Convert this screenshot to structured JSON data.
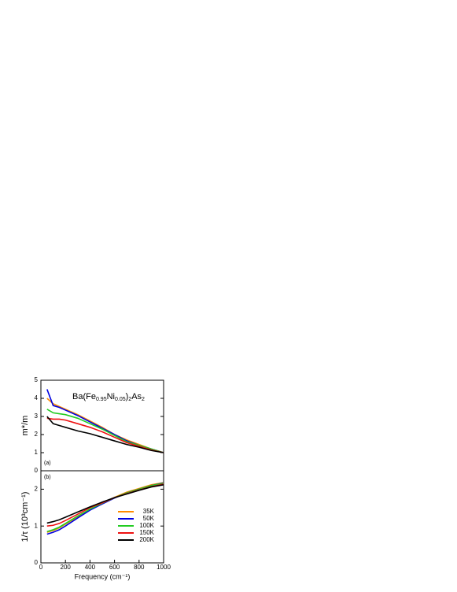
{
  "chart_data": [
    {
      "type": "line",
      "panel_label": "(a)",
      "ylabel": "m*/m",
      "annotation": [
        {
          "text": "Ba(Fe"
        },
        {
          "text": "0.95",
          "sub": true
        },
        {
          "text": "Ni"
        },
        {
          "text": "0.05",
          "sub": true
        },
        {
          "text": ")"
        },
        {
          "text": "2",
          "sub": true
        },
        {
          "text": "As"
        },
        {
          "text": "2",
          "sub": true
        }
      ],
      "x": [
        50,
        100,
        150,
        200,
        300,
        400,
        500,
        600,
        700,
        800,
        900,
        1000
      ],
      "xlim": [
        0,
        1000
      ],
      "ylim": [
        0,
        5
      ],
      "yticks": [
        0,
        1,
        2,
        3,
        4,
        5
      ],
      "series": [
        {
          "name": "35K",
          "color": "#ff8c00",
          "values": [
            4.0,
            3.7,
            3.55,
            3.4,
            3.1,
            2.75,
            2.4,
            2.0,
            1.7,
            1.45,
            1.2,
            1.0
          ]
        },
        {
          "name": "50K",
          "color": "#0000e0",
          "values": [
            4.5,
            3.6,
            3.5,
            3.35,
            3.05,
            2.7,
            2.35,
            2.0,
            1.65,
            1.4,
            1.2,
            1.0
          ]
        },
        {
          "name": "100K",
          "color": "#22cc22",
          "values": [
            3.4,
            3.2,
            3.15,
            3.1,
            2.9,
            2.6,
            2.3,
            1.95,
            1.6,
            1.4,
            1.2,
            1.0
          ]
        },
        {
          "name": "150K",
          "color": "#ee1111",
          "values": [
            2.9,
            2.85,
            2.85,
            2.8,
            2.6,
            2.4,
            2.15,
            1.85,
            1.55,
            1.35,
            1.15,
            1.0
          ]
        },
        {
          "name": "200K",
          "color": "#000000",
          "values": [
            3.0,
            2.6,
            2.5,
            2.4,
            2.2,
            2.05,
            1.85,
            1.65,
            1.45,
            1.3,
            1.12,
            1.0
          ]
        }
      ]
    },
    {
      "type": "line",
      "panel_label": "(b)",
      "ylabel": "1/τ (10³cm⁻¹)",
      "xlabel": "Frequency (cm⁻¹)",
      "x": [
        50,
        100,
        150,
        200,
        300,
        400,
        500,
        600,
        700,
        800,
        900,
        1000
      ],
      "xlim": [
        0,
        1000
      ],
      "xticks": [
        0,
        200,
        400,
        600,
        800,
        1000
      ],
      "ylim": [
        0,
        2.5
      ],
      "yticks": [
        0,
        1,
        2
      ],
      "legend": "lower right",
      "series": [
        {
          "name": "35K",
          "color": "#ff8c00",
          "values": [
            0.83,
            0.88,
            0.95,
            1.05,
            1.25,
            1.45,
            1.62,
            1.78,
            1.92,
            2.02,
            2.12,
            2.18
          ]
        },
        {
          "name": "50K",
          "color": "#0000e0",
          "values": [
            0.78,
            0.83,
            0.9,
            1.0,
            1.22,
            1.43,
            1.6,
            1.76,
            1.9,
            2.0,
            2.1,
            2.17
          ]
        },
        {
          "name": "100K",
          "color": "#22cc22",
          "values": [
            0.85,
            0.9,
            0.97,
            1.07,
            1.27,
            1.46,
            1.62,
            1.77,
            1.9,
            2.0,
            2.1,
            2.16
          ]
        },
        {
          "name": "150K",
          "color": "#ee1111",
          "values": [
            1.0,
            1.02,
            1.07,
            1.15,
            1.32,
            1.5,
            1.63,
            1.77,
            1.88,
            1.98,
            2.07,
            2.14
          ]
        },
        {
          "name": "200K",
          "color": "#000000",
          "values": [
            1.08,
            1.12,
            1.17,
            1.24,
            1.38,
            1.52,
            1.65,
            1.77,
            1.87,
            1.97,
            2.06,
            2.12
          ]
        }
      ]
    }
  ]
}
